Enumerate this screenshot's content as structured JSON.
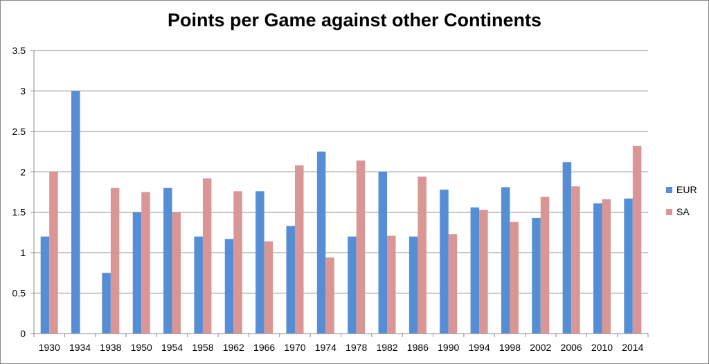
{
  "chart_data": {
    "type": "bar",
    "title": "Points per Game against other Continents",
    "xlabel": "",
    "ylabel": "",
    "ylim": [
      0,
      3.5
    ],
    "yticks": [
      "0",
      "0.5",
      "1",
      "1.5",
      "2",
      "2.5",
      "3",
      "3.5"
    ],
    "grid": true,
    "legend_position": "right",
    "categories": [
      "1930",
      "1934",
      "1938",
      "1950",
      "1954",
      "1958",
      "1962",
      "1966",
      "1970",
      "1974",
      "1978",
      "1982",
      "1986",
      "1990",
      "1994",
      "1998",
      "2002",
      "2006",
      "2010",
      "2014"
    ],
    "series": [
      {
        "name": "EUR",
        "color": "#558ED5",
        "values": [
          1.2,
          3.0,
          0.75,
          1.5,
          1.8,
          1.2,
          1.17,
          1.76,
          1.33,
          2.25,
          1.2,
          2.0,
          1.2,
          1.78,
          1.56,
          1.81,
          1.43,
          2.12,
          1.61,
          1.67
        ]
      },
      {
        "name": "SA",
        "color": "#D99694",
        "values": [
          2.0,
          0,
          1.8,
          1.75,
          1.5,
          1.92,
          1.76,
          1.14,
          2.08,
          0.94,
          2.14,
          1.21,
          1.94,
          1.23,
          1.53,
          1.38,
          1.69,
          1.82,
          1.66,
          2.32
        ]
      }
    ]
  },
  "legend": {
    "items": [
      {
        "label": "EUR",
        "color": "#558ED5"
      },
      {
        "label": "SA",
        "color": "#D99694"
      }
    ]
  }
}
